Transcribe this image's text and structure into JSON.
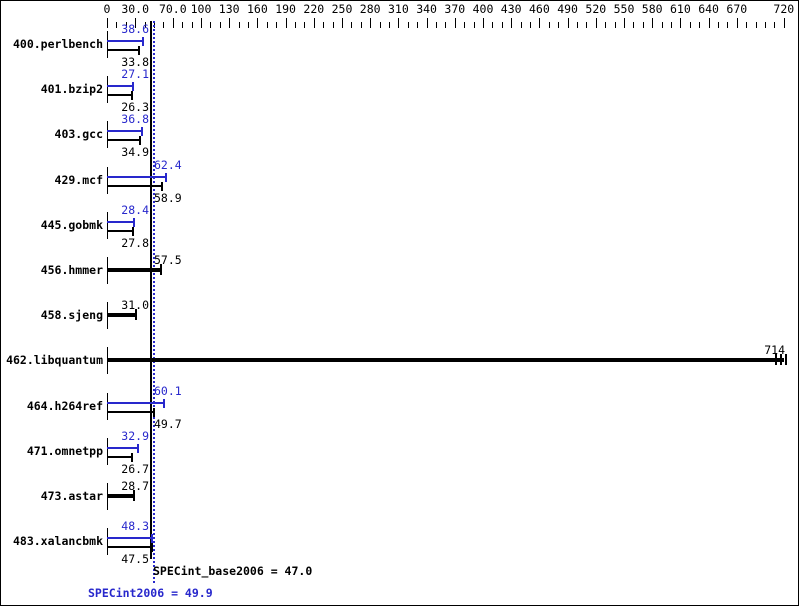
{
  "chart_data": {
    "type": "bar",
    "orientation": "horizontal",
    "title": "",
    "xlabel": "",
    "ylabel": "",
    "x_axis": {
      "min": 0,
      "max": 720,
      "minor_tick_step": 10,
      "major_ticks": [
        0,
        30,
        70,
        100,
        130,
        160,
        190,
        220,
        250,
        280,
        310,
        340,
        370,
        400,
        430,
        460,
        490,
        520,
        550,
        580,
        610,
        640,
        670,
        720
      ],
      "major_tick_labels": [
        "0",
        "30.0",
        "70.0",
        "100",
        "130",
        "160",
        "190",
        "220",
        "250",
        "280",
        "310",
        "340",
        "370",
        "400",
        "430",
        "460",
        "490",
        "520",
        "550",
        "580",
        "610",
        "640",
        "670",
        "720"
      ]
    },
    "colors": {
      "peak": "#2828cc",
      "base": "#000000",
      "background": "#ffffff"
    },
    "benchmarks": [
      {
        "name": "400.perlbench",
        "peak": 38.6,
        "base": 33.8,
        "peak_label": "38.6",
        "base_label": "33.8",
        "single": false,
        "run_ticks": 1
      },
      {
        "name": "401.bzip2",
        "peak": 27.1,
        "base": 26.3,
        "peak_label": "27.1",
        "base_label": "26.3",
        "single": false,
        "run_ticks": 1
      },
      {
        "name": "403.gcc",
        "peak": 36.8,
        "base": 34.9,
        "peak_label": "36.8",
        "base_label": "34.9",
        "single": false,
        "run_ticks": 1
      },
      {
        "name": "429.mcf",
        "peak": 62.4,
        "base": 58.9,
        "peak_label": "62.4",
        "base_label": "58.9",
        "single": false,
        "run_ticks": 1
      },
      {
        "name": "445.gobmk",
        "peak": 28.4,
        "base": 27.8,
        "peak_label": "28.4",
        "base_label": "27.8",
        "single": false,
        "run_ticks": 1
      },
      {
        "name": "456.hmmer",
        "peak": null,
        "base": 57.5,
        "peak_label": "",
        "base_label": "57.5",
        "single": true,
        "run_ticks": 1
      },
      {
        "name": "458.sjeng",
        "peak": null,
        "base": 31.0,
        "peak_label": "",
        "base_label": "31.0",
        "single": true,
        "run_ticks": 1
      },
      {
        "name": "462.libquantum",
        "peak": null,
        "base": 714,
        "peak_label": "",
        "base_label": "714",
        "single": true,
        "run_ticks": 3
      },
      {
        "name": "464.h264ref",
        "peak": 60.1,
        "base": 49.7,
        "peak_label": "60.1",
        "base_label": "49.7",
        "single": false,
        "run_ticks": 1
      },
      {
        "name": "471.omnetpp",
        "peak": 32.9,
        "base": 26.7,
        "peak_label": "32.9",
        "base_label": "26.7",
        "single": false,
        "run_ticks": 1
      },
      {
        "name": "473.astar",
        "peak": null,
        "base": 28.7,
        "peak_label": "",
        "base_label": "28.7",
        "single": true,
        "run_ticks": 1
      },
      {
        "name": "483.xalancbmk",
        "peak": 48.3,
        "base": 47.5,
        "peak_label": "48.3",
        "base_label": "47.5",
        "single": false,
        "run_ticks": 1
      }
    ],
    "reference_lines": [
      {
        "label": "SPECint_base2006 = 47.0",
        "metric": "SPECint_base2006",
        "value": 47.0,
        "color": "#000000",
        "style": "solid"
      },
      {
        "label": "SPECint2006 = 49.9",
        "metric": "SPECint2006",
        "value": 49.9,
        "color": "#2828cc",
        "style": "dotted"
      }
    ]
  }
}
